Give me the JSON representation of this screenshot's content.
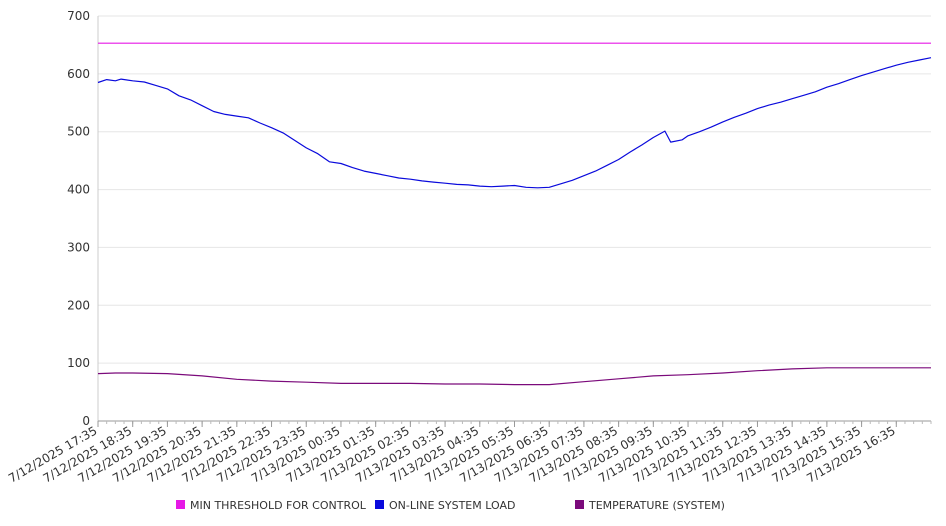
{
  "chart_data": {
    "type": "line",
    "title": "",
    "xlabel": "",
    "ylabel": "",
    "ylim": [
      0,
      700
    ],
    "yticks": [
      0,
      100,
      200,
      300,
      400,
      500,
      600,
      700
    ],
    "grid": true,
    "legend_position": "bottom",
    "x_start": "7/12/2025 17:35",
    "x_end": "7/13/2025 17:35",
    "x_tick_labels": [
      "7/12/2025 17:35",
      "7/12/2025 18:35",
      "7/12/2025 19:35",
      "7/12/2025 20:35",
      "7/12/2025 21:35",
      "7/12/2025 22:35",
      "7/12/2025 23:35",
      "7/13/2025 00:35",
      "7/13/2025 01:35",
      "7/13/2025 02:35",
      "7/13/2025 03:35",
      "7/13/2025 04:35",
      "7/13/2025 05:35",
      "7/13/2025 06:35",
      "7/13/2025 07:35",
      "7/13/2025 08:35",
      "7/13/2025 09:35",
      "7/13/2025 10:35",
      "7/13/2025 11:35",
      "7/13/2025 12:35",
      "7/13/2025 13:35",
      "7/13/2025 14:35",
      "7/13/2025 15:35",
      "7/13/2025 16:35"
    ],
    "series": [
      {
        "name": "MIN THRESHOLD FOR CONTROL",
        "color": "#e619e6",
        "points": [
          [
            "7/12/2025 17:35",
            653
          ],
          [
            "7/13/2025 17:35",
            653
          ]
        ]
      },
      {
        "name": "ON-LINE SYSTEM LOAD",
        "color": "#0a0adc",
        "points": [
          [
            "7/12/2025 17:35",
            585
          ],
          [
            "7/12/2025 17:50",
            590
          ],
          [
            "7/12/2025 18:05",
            588
          ],
          [
            "7/12/2025 18:15",
            591
          ],
          [
            "7/12/2025 18:35",
            588
          ],
          [
            "7/12/2025 18:55",
            586
          ],
          [
            "7/12/2025 19:15",
            580
          ],
          [
            "7/12/2025 19:35",
            574
          ],
          [
            "7/12/2025 19:55",
            562
          ],
          [
            "7/12/2025 20:15",
            555
          ],
          [
            "7/12/2025 20:35",
            545
          ],
          [
            "7/12/2025 20:55",
            535
          ],
          [
            "7/12/2025 21:15",
            530
          ],
          [
            "7/12/2025 21:35",
            527
          ],
          [
            "7/12/2025 21:55",
            524
          ],
          [
            "7/12/2025 22:15",
            515
          ],
          [
            "7/12/2025 22:35",
            507
          ],
          [
            "7/12/2025 22:55",
            498
          ],
          [
            "7/12/2025 23:15",
            485
          ],
          [
            "7/12/2025 23:35",
            472
          ],
          [
            "7/12/2025 23:55",
            462
          ],
          [
            "7/13/2025 00:15",
            448
          ],
          [
            "7/13/2025 00:35",
            445
          ],
          [
            "7/13/2025 00:55",
            438
          ],
          [
            "7/13/2025 01:15",
            432
          ],
          [
            "7/13/2025 01:35",
            428
          ],
          [
            "7/13/2025 01:55",
            424
          ],
          [
            "7/13/2025 02:15",
            420
          ],
          [
            "7/13/2025 02:35",
            418
          ],
          [
            "7/13/2025 02:55",
            415
          ],
          [
            "7/13/2025 03:15",
            413
          ],
          [
            "7/13/2025 03:35",
            411
          ],
          [
            "7/13/2025 03:55",
            409
          ],
          [
            "7/13/2025 04:15",
            408
          ],
          [
            "7/13/2025 04:35",
            406
          ],
          [
            "7/13/2025 04:55",
            405
          ],
          [
            "7/13/2025 05:15",
            406
          ],
          [
            "7/13/2025 05:35",
            407
          ],
          [
            "7/13/2025 05:55",
            404
          ],
          [
            "7/13/2025 06:15",
            403
          ],
          [
            "7/13/2025 06:35",
            404
          ],
          [
            "7/13/2025 06:55",
            410
          ],
          [
            "7/13/2025 07:15",
            416
          ],
          [
            "7/13/2025 07:35",
            424
          ],
          [
            "7/13/2025 07:55",
            432
          ],
          [
            "7/13/2025 08:15",
            442
          ],
          [
            "7/13/2025 08:35",
            452
          ],
          [
            "7/13/2025 08:55",
            465
          ],
          [
            "7/13/2025 09:15",
            477
          ],
          [
            "7/13/2025 09:35",
            490
          ],
          [
            "7/13/2025 09:55",
            501
          ],
          [
            "7/13/2025 10:05",
            482
          ],
          [
            "7/13/2025 10:25",
            486
          ],
          [
            "7/13/2025 10:35",
            493
          ],
          [
            "7/13/2025 10:55",
            500
          ],
          [
            "7/13/2025 11:15",
            508
          ],
          [
            "7/13/2025 11:35",
            517
          ],
          [
            "7/13/2025 11:55",
            525
          ],
          [
            "7/13/2025 12:15",
            532
          ],
          [
            "7/13/2025 12:35",
            540
          ],
          [
            "7/13/2025 12:55",
            546
          ],
          [
            "7/13/2025 13:15",
            551
          ],
          [
            "7/13/2025 13:35",
            557
          ],
          [
            "7/13/2025 13:55",
            563
          ],
          [
            "7/13/2025 14:15",
            569
          ],
          [
            "7/13/2025 14:35",
            577
          ],
          [
            "7/13/2025 14:55",
            583
          ],
          [
            "7/13/2025 15:15",
            590
          ],
          [
            "7/13/2025 15:35",
            597
          ],
          [
            "7/13/2025 15:55",
            603
          ],
          [
            "7/13/2025 16:15",
            609
          ],
          [
            "7/13/2025 16:35",
            615
          ],
          [
            "7/13/2025 16:55",
            620
          ],
          [
            "7/13/2025 17:15",
            624
          ],
          [
            "7/13/2025 17:35",
            628
          ]
        ]
      },
      {
        "name": "TEMPERATURE (SYSTEM)",
        "color": "#7b0a7b",
        "points": [
          [
            "7/12/2025 17:35",
            82
          ],
          [
            "7/12/2025 18:05",
            83
          ],
          [
            "7/12/2025 18:35",
            83
          ],
          [
            "7/12/2025 19:35",
            82
          ],
          [
            "7/12/2025 20:35",
            78
          ],
          [
            "7/12/2025 21:35",
            72
          ],
          [
            "7/12/2025 22:35",
            69
          ],
          [
            "7/12/2025 23:35",
            67
          ],
          [
            "7/13/2025 00:35",
            65
          ],
          [
            "7/13/2025 01:35",
            65
          ],
          [
            "7/13/2025 02:35",
            65
          ],
          [
            "7/13/2025 03:35",
            64
          ],
          [
            "7/13/2025 04:35",
            64
          ],
          [
            "7/13/2025 05:35",
            63
          ],
          [
            "7/13/2025 06:35",
            63
          ],
          [
            "7/13/2025 07:35",
            68
          ],
          [
            "7/13/2025 08:35",
            73
          ],
          [
            "7/13/2025 09:35",
            78
          ],
          [
            "7/13/2025 10:35",
            80
          ],
          [
            "7/13/2025 11:35",
            83
          ],
          [
            "7/13/2025 12:35",
            87
          ],
          [
            "7/13/2025 13:35",
            90
          ],
          [
            "7/13/2025 14:35",
            92
          ],
          [
            "7/13/2025 15:35",
            92
          ],
          [
            "7/13/2025 16:35",
            92
          ],
          [
            "7/13/2025 17:35",
            92
          ]
        ]
      }
    ]
  }
}
